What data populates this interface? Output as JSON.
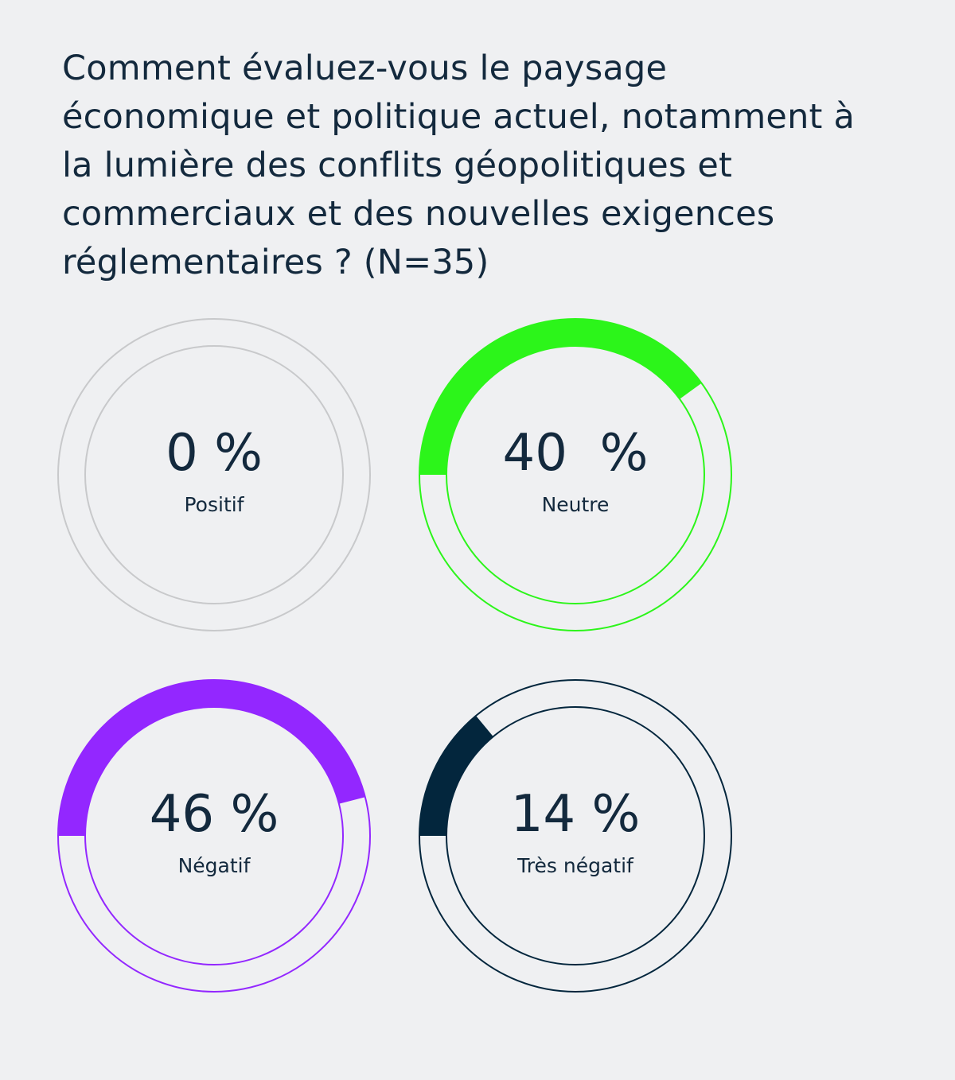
{
  "title": "Comment évaluez-vous le paysage économique et politique actuel, notamment à la lumière des conflits géopolitiques et commerciaux et des nouvelles exigences réglementaires ? (N=35)",
  "chart_data": {
    "type": "donut",
    "unit": "%",
    "items": [
      {
        "label": "Positif",
        "value": 0,
        "value_text": "0 %",
        "color": "#c8c9cb"
      },
      {
        "label": "Neutre",
        "value": 40,
        "value_text": "40  %",
        "color": "#2cf51a"
      },
      {
        "label": "Négatif",
        "value": 46,
        "value_text": "46 %",
        "color": "#9327ff"
      },
      {
        "label": "Très négatif",
        "value": 14,
        "value_text": "14 %",
        "color": "#03263d"
      }
    ]
  }
}
